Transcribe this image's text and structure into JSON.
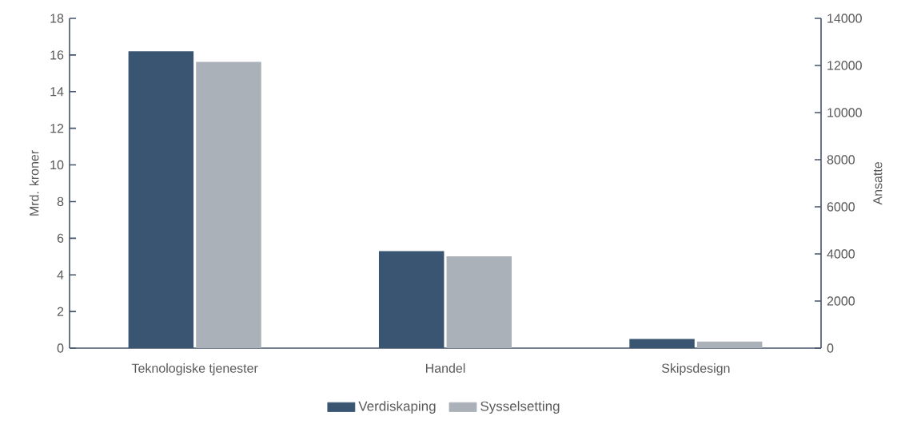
{
  "chart_data": {
    "type": "bar",
    "ylabel": "Mrd. kroner",
    "y2label": "Ansatte",
    "categories": [
      "Teknologiske tjenester",
      "Handel",
      "Skipsdesign"
    ],
    "series": [
      {
        "name": "Verdiskaping",
        "color": "#3a5572",
        "values": [
          16.2,
          5.3,
          0.5
        ]
      },
      {
        "name": "Sysselsetting",
        "color": "#abb1b8",
        "values": [
          12150,
          3900,
          280
        ],
        "axis": "y2"
      }
    ],
    "ylim": [
      0,
      18
    ],
    "yticks": [
      0,
      2,
      4,
      6,
      8,
      10,
      12,
      14,
      16,
      18
    ],
    "y2lim": [
      0,
      14000
    ],
    "y2ticks": [
      0,
      2000,
      4000,
      6000,
      8000,
      10000,
      12000,
      14000
    ],
    "legend": "bottom"
  }
}
